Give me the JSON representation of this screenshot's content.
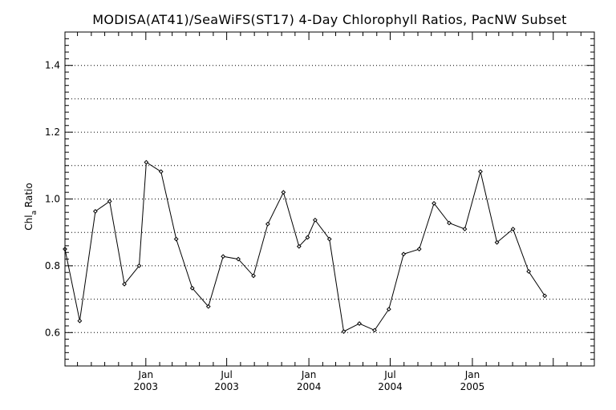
{
  "chart_data": {
    "type": "line",
    "title": "MODISA(AT41)/SeaWiFS(ST17) 4-Day Chlorophyll Ratios, PacNW Subset",
    "ylabel": {
      "main": "Chl",
      "sub": "a",
      "rest": " Ratio"
    },
    "xlabel": "",
    "ylim": [
      0.5,
      1.5
    ],
    "xlim": [
      "2002-07-04",
      "2005-10-01"
    ],
    "y_ticks": [
      0.6,
      0.8,
      1.0,
      1.2,
      1.4
    ],
    "y_tick_labels": [
      "0.6",
      "0.8",
      "1.0",
      "1.2",
      "1.4"
    ],
    "y_gridlines": [
      0.6,
      0.7,
      0.8,
      0.9,
      1.0,
      1.1,
      1.2,
      1.3,
      1.4
    ],
    "grid": true,
    "marker": "diamond",
    "x_ticks": [
      {
        "date": "2003-01-01",
        "month": "Jan",
        "year": "2003"
      },
      {
        "date": "2003-07-01",
        "month": "Jul",
        "year": "2003"
      },
      {
        "date": "2004-01-01",
        "month": "Jan",
        "year": "2004"
      },
      {
        "date": "2004-07-01",
        "month": "Jul",
        "year": "2004"
      },
      {
        "date": "2005-01-01",
        "month": "Jan",
        "year": "2005"
      }
    ],
    "series": [
      {
        "color": "#000000",
        "points": [
          {
            "x": "2002-07-04",
            "y": 0.85
          },
          {
            "x": "2002-08-06",
            "y": 0.635
          },
          {
            "x": "2002-09-10",
            "y": 0.963
          },
          {
            "x": "2002-10-12",
            "y": 0.993
          },
          {
            "x": "2002-11-14",
            "y": 0.745
          },
          {
            "x": "2002-12-17",
            "y": 0.8
          },
          {
            "x": "2003-01-02",
            "y": 1.11
          },
          {
            "x": "2003-02-04",
            "y": 1.082
          },
          {
            "x": "2003-03-10",
            "y": 0.88
          },
          {
            "x": "2003-04-15",
            "y": 0.733
          },
          {
            "x": "2003-05-21",
            "y": 0.678
          },
          {
            "x": "2003-06-23",
            "y": 0.828
          },
          {
            "x": "2003-07-27",
            "y": 0.82
          },
          {
            "x": "2003-08-30",
            "y": 0.77
          },
          {
            "x": "2003-10-01",
            "y": 0.925
          },
          {
            "x": "2003-11-05",
            "y": 1.02
          },
          {
            "x": "2003-12-10",
            "y": 0.858
          },
          {
            "x": "2003-12-29",
            "y": 0.885
          },
          {
            "x": "2004-01-15",
            "y": 0.937
          },
          {
            "x": "2004-02-16",
            "y": 0.88
          },
          {
            "x": "2004-03-19",
            "y": 0.603
          },
          {
            "x": "2004-04-23",
            "y": 0.627
          },
          {
            "x": "2004-05-27",
            "y": 0.607
          },
          {
            "x": "2004-06-28",
            "y": 0.67
          },
          {
            "x": "2004-07-31",
            "y": 0.835
          },
          {
            "x": "2004-09-04",
            "y": 0.85
          },
          {
            "x": "2004-10-07",
            "y": 0.987
          },
          {
            "x": "2004-11-10",
            "y": 0.928
          },
          {
            "x": "2004-12-15",
            "y": 0.91
          },
          {
            "x": "2005-01-19",
            "y": 1.082
          },
          {
            "x": "2005-02-25",
            "y": 0.87
          },
          {
            "x": "2005-04-02",
            "y": 0.91
          },
          {
            "x": "2005-05-07",
            "y": 0.783
          },
          {
            "x": "2005-06-12",
            "y": 0.71
          }
        ]
      }
    ]
  }
}
